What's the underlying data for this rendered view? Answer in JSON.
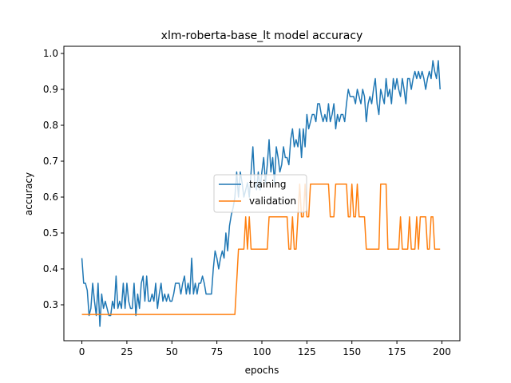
{
  "chart_data": {
    "type": "line",
    "title": "xlm-roberta-base_lt model accuracy",
    "xlabel": "epochs",
    "ylabel": "accuracy",
    "xlim": [
      -10,
      210
    ],
    "ylim": [
      0.2,
      1.02
    ],
    "xticks": [
      0,
      25,
      50,
      75,
      100,
      125,
      150,
      175,
      200
    ],
    "yticks": [
      0.3,
      0.4,
      0.5,
      0.6,
      0.7,
      0.8,
      0.9,
      1.0
    ],
    "xtick_labels": [
      "0",
      "25",
      "50",
      "75",
      "100",
      "125",
      "150",
      "175",
      "200"
    ],
    "ytick_labels": [
      "0.3",
      "0.4",
      "0.5",
      "0.6",
      "0.7",
      "0.8",
      "0.9",
      "1.0"
    ],
    "grid": false,
    "legend_position": "center",
    "series": [
      {
        "name": "training",
        "color": "#1f77b4",
        "points": [
          [
            0,
            0.43
          ],
          [
            1,
            0.36
          ],
          [
            2,
            0.36
          ],
          [
            3,
            0.34
          ],
          [
            4,
            0.27
          ],
          [
            5,
            0.29
          ],
          [
            6,
            0.36
          ],
          [
            7,
            0.31
          ],
          [
            8,
            0.27
          ],
          [
            9,
            0.36
          ],
          [
            10,
            0.24
          ],
          [
            11,
            0.33
          ],
          [
            12,
            0.29
          ],
          [
            13,
            0.31
          ],
          [
            14,
            0.29
          ],
          [
            15,
            0.27
          ],
          [
            16,
            0.27
          ],
          [
            17,
            0.31
          ],
          [
            18,
            0.29
          ],
          [
            19,
            0.38
          ],
          [
            20,
            0.29
          ],
          [
            21,
            0.31
          ],
          [
            22,
            0.29
          ],
          [
            23,
            0.36
          ],
          [
            24,
            0.29
          ],
          [
            25,
            0.36
          ],
          [
            26,
            0.31
          ],
          [
            27,
            0.29
          ],
          [
            28,
            0.29
          ],
          [
            29,
            0.36
          ],
          [
            30,
            0.27
          ],
          [
            31,
            0.33
          ],
          [
            32,
            0.29
          ],
          [
            33,
            0.36
          ],
          [
            34,
            0.38
          ],
          [
            35,
            0.31
          ],
          [
            36,
            0.38
          ],
          [
            37,
            0.31
          ],
          [
            38,
            0.31
          ],
          [
            39,
            0.33
          ],
          [
            40,
            0.31
          ],
          [
            41,
            0.36
          ],
          [
            42,
            0.29
          ],
          [
            43,
            0.33
          ],
          [
            44,
            0.36
          ],
          [
            45,
            0.31
          ],
          [
            46,
            0.33
          ],
          [
            47,
            0.31
          ],
          [
            48,
            0.33
          ],
          [
            49,
            0.31
          ],
          [
            50,
            0.31
          ],
          [
            51,
            0.33
          ],
          [
            52,
            0.36
          ],
          [
            53,
            0.36
          ],
          [
            54,
            0.36
          ],
          [
            55,
            0.33
          ],
          [
            56,
            0.36
          ],
          [
            57,
            0.38
          ],
          [
            58,
            0.33
          ],
          [
            59,
            0.36
          ],
          [
            60,
            0.33
          ],
          [
            61,
            0.43
          ],
          [
            62,
            0.33
          ],
          [
            63,
            0.36
          ],
          [
            64,
            0.33
          ],
          [
            65,
            0.36
          ],
          [
            66,
            0.36
          ],
          [
            67,
            0.38
          ],
          [
            68,
            0.36
          ],
          [
            69,
            0.33
          ],
          [
            70,
            0.33
          ],
          [
            71,
            0.33
          ],
          [
            72,
            0.33
          ],
          [
            73,
            0.4
          ],
          [
            74,
            0.45
          ],
          [
            75,
            0.43
          ],
          [
            76,
            0.4
          ],
          [
            77,
            0.43
          ],
          [
            78,
            0.45
          ],
          [
            79,
            0.43
          ],
          [
            80,
            0.5
          ],
          [
            81,
            0.45
          ],
          [
            82,
            0.52
          ],
          [
            83,
            0.55
          ],
          [
            84,
            0.57
          ],
          [
            85,
            0.6
          ],
          [
            86,
            0.67
          ],
          [
            87,
            0.6
          ],
          [
            88,
            0.67
          ],
          [
            89,
            0.64
          ],
          [
            90,
            0.6
          ],
          [
            91,
            0.62
          ],
          [
            92,
            0.64
          ],
          [
            93,
            0.6
          ],
          [
            94,
            0.67
          ],
          [
            95,
            0.74
          ],
          [
            96,
            0.64
          ],
          [
            97,
            0.62
          ],
          [
            98,
            0.67
          ],
          [
            99,
            0.62
          ],
          [
            100,
            0.67
          ],
          [
            101,
            0.71
          ],
          [
            102,
            0.64
          ],
          [
            103,
            0.69
          ],
          [
            104,
            0.76
          ],
          [
            105,
            0.67
          ],
          [
            106,
            0.71
          ],
          [
            107,
            0.64
          ],
          [
            108,
            0.74
          ],
          [
            109,
            0.71
          ],
          [
            110,
            0.67
          ],
          [
            111,
            0.69
          ],
          [
            112,
            0.74
          ],
          [
            113,
            0.71
          ],
          [
            114,
            0.71
          ],
          [
            115,
            0.69
          ],
          [
            116,
            0.76
          ],
          [
            117,
            0.79
          ],
          [
            118,
            0.74
          ],
          [
            119,
            0.76
          ],
          [
            120,
            0.74
          ],
          [
            121,
            0.79
          ],
          [
            122,
            0.71
          ],
          [
            123,
            0.79
          ],
          [
            124,
            0.74
          ],
          [
            125,
            0.83
          ],
          [
            126,
            0.79
          ],
          [
            127,
            0.81
          ],
          [
            128,
            0.83
          ],
          [
            129,
            0.83
          ],
          [
            130,
            0.81
          ],
          [
            131,
            0.86
          ],
          [
            132,
            0.86
          ],
          [
            133,
            0.83
          ],
          [
            134,
            0.81
          ],
          [
            135,
            0.83
          ],
          [
            136,
            0.81
          ],
          [
            137,
            0.86
          ],
          [
            138,
            0.81
          ],
          [
            139,
            0.83
          ],
          [
            140,
            0.86
          ],
          [
            141,
            0.79
          ],
          [
            142,
            0.83
          ],
          [
            143,
            0.81
          ],
          [
            144,
            0.83
          ],
          [
            145,
            0.83
          ],
          [
            146,
            0.81
          ],
          [
            147,
            0.86
          ],
          [
            148,
            0.9
          ],
          [
            149,
            0.88
          ],
          [
            150,
            0.88
          ],
          [
            151,
            0.88
          ],
          [
            152,
            0.86
          ],
          [
            153,
            0.9
          ],
          [
            154,
            0.88
          ],
          [
            155,
            0.86
          ],
          [
            156,
            0.9
          ],
          [
            157,
            0.88
          ],
          [
            158,
            0.81
          ],
          [
            159,
            0.86
          ],
          [
            160,
            0.88
          ],
          [
            161,
            0.86
          ],
          [
            162,
            0.9
          ],
          [
            163,
            0.93
          ],
          [
            164,
            0.86
          ],
          [
            165,
            0.83
          ],
          [
            166,
            0.9
          ],
          [
            167,
            0.88
          ],
          [
            168,
            0.86
          ],
          [
            169,
            0.93
          ],
          [
            170,
            0.88
          ],
          [
            171,
            0.9
          ],
          [
            172,
            0.86
          ],
          [
            173,
            0.93
          ],
          [
            174,
            0.9
          ],
          [
            175,
            0.93
          ],
          [
            176,
            0.9
          ],
          [
            177,
            0.88
          ],
          [
            178,
            0.93
          ],
          [
            179,
            0.9
          ],
          [
            180,
            0.86
          ],
          [
            181,
            0.93
          ],
          [
            182,
            0.93
          ],
          [
            183,
            0.9
          ],
          [
            184,
            0.93
          ],
          [
            185,
            0.95
          ],
          [
            186,
            0.93
          ],
          [
            187,
            0.95
          ],
          [
            188,
            0.93
          ],
          [
            189,
            0.95
          ],
          [
            190,
            0.93
          ],
          [
            191,
            0.9
          ],
          [
            192,
            0.93
          ],
          [
            193,
            0.95
          ],
          [
            194,
            0.93
          ],
          [
            195,
            0.98
          ],
          [
            196,
            0.95
          ],
          [
            197,
            0.93
          ],
          [
            198,
            0.98
          ],
          [
            199,
            0.9
          ]
        ]
      },
      {
        "name": "validation",
        "color": "#ff7f0e",
        "points": [
          [
            0,
            0.273
          ],
          [
            85,
            0.273
          ],
          [
            86,
            0.364
          ],
          [
            87,
            0.455
          ],
          [
            90,
            0.455
          ],
          [
            91,
            0.545
          ],
          [
            92,
            0.455
          ],
          [
            93,
            0.545
          ],
          [
            94,
            0.455
          ],
          [
            103,
            0.455
          ],
          [
            104,
            0.545
          ],
          [
            114,
            0.545
          ],
          [
            115,
            0.455
          ],
          [
            116,
            0.455
          ],
          [
            117,
            0.545
          ],
          [
            118,
            0.455
          ],
          [
            119,
            0.455
          ],
          [
            120,
            0.545
          ],
          [
            121,
            0.636
          ],
          [
            122,
            0.545
          ],
          [
            123,
            0.545
          ],
          [
            124,
            0.636
          ],
          [
            125,
            0.545
          ],
          [
            126,
            0.545
          ],
          [
            127,
            0.636
          ],
          [
            137,
            0.636
          ],
          [
            138,
            0.545
          ],
          [
            140,
            0.545
          ],
          [
            141,
            0.636
          ],
          [
            147,
            0.636
          ],
          [
            148,
            0.545
          ],
          [
            149,
            0.545
          ],
          [
            150,
            0.636
          ],
          [
            151,
            0.545
          ],
          [
            152,
            0.545
          ],
          [
            153,
            0.636
          ],
          [
            154,
            0.545
          ],
          [
            157,
            0.545
          ],
          [
            158,
            0.455
          ],
          [
            165,
            0.455
          ],
          [
            166,
            0.636
          ],
          [
            169,
            0.636
          ],
          [
            170,
            0.455
          ],
          [
            176,
            0.455
          ],
          [
            177,
            0.545
          ],
          [
            178,
            0.455
          ],
          [
            181,
            0.455
          ],
          [
            182,
            0.545
          ],
          [
            183,
            0.455
          ],
          [
            185,
            0.455
          ],
          [
            186,
            0.545
          ],
          [
            187,
            0.455
          ],
          [
            188,
            0.545
          ],
          [
            191,
            0.545
          ],
          [
            192,
            0.455
          ],
          [
            193,
            0.455
          ],
          [
            194,
            0.545
          ],
          [
            195,
            0.545
          ],
          [
            196,
            0.455
          ],
          [
            197,
            0.455
          ],
          [
            198,
            0.455
          ],
          [
            199,
            0.455
          ]
        ]
      }
    ]
  }
}
